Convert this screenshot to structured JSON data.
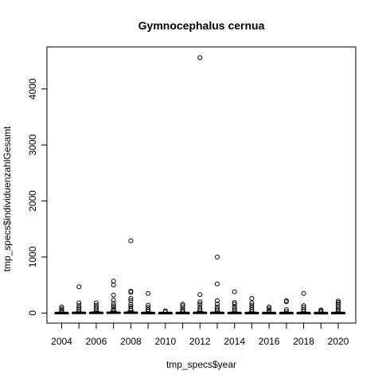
{
  "chart_data": {
    "type": "box",
    "title": "Gymnocephalus cernua",
    "xlabel": "tmp_specs$year",
    "ylabel": "tmp_specs$individuenzahlGesamt",
    "categories": [
      2004,
      2005,
      2006,
      2007,
      2008,
      2009,
      2010,
      2011,
      2012,
      2013,
      2014,
      2015,
      2016,
      2017,
      2018,
      2019,
      2020
    ],
    "x_tick_labels": [
      "2004",
      "2006",
      "2008",
      "2010",
      "2012",
      "2014",
      "2016",
      "2018",
      "2020"
    ],
    "y_ticks": [
      0,
      1000,
      2000,
      3000,
      4000
    ],
    "y_tick_labels": [
      "0",
      "1000",
      "2000",
      "3000",
      "4000"
    ],
    "ylim": [
      -180,
      4750
    ],
    "grid": false,
    "boxes": [
      {
        "category": 2004,
        "q1": 0,
        "median": 2,
        "q3": 6,
        "whisker_low": 0,
        "whisker_high": 14,
        "outliers": [
          25,
          50,
          75,
          110
        ]
      },
      {
        "category": 2005,
        "q1": 0,
        "median": 3,
        "q3": 10,
        "whisker_low": 0,
        "whisker_high": 22,
        "outliers": [
          30,
          60,
          90,
          130,
          180,
          470
        ]
      },
      {
        "category": 2006,
        "q1": 0,
        "median": 3,
        "q3": 11,
        "whisker_low": 0,
        "whisker_high": 26,
        "outliers": [
          40,
          70,
          100,
          140,
          180
        ]
      },
      {
        "category": 2007,
        "q1": 0,
        "median": 4,
        "q3": 14,
        "whisker_low": 0,
        "whisker_high": 33,
        "outliers": [
          45,
          70,
          100,
          130,
          170,
          230,
          320,
          500,
          570
        ]
      },
      {
        "category": 2008,
        "q1": 0,
        "median": 4,
        "q3": 14,
        "whisker_low": 0,
        "whisker_high": 35,
        "outliers": [
          50,
          80,
          120,
          160,
          220,
          260,
          370,
          390,
          1290
        ]
      },
      {
        "category": 2009,
        "q1": 0,
        "median": 2,
        "q3": 8,
        "whisker_low": 0,
        "whisker_high": 18,
        "outliers": [
          30,
          60,
          100,
          140,
          350
        ]
      },
      {
        "category": 2010,
        "q1": 0,
        "median": 1,
        "q3": 4,
        "whisker_low": 0,
        "whisker_high": 9,
        "outliers": [
          20,
          40
        ]
      },
      {
        "category": 2011,
        "q1": 0,
        "median": 2,
        "q3": 8,
        "whisker_low": 0,
        "whisker_high": 18,
        "outliers": [
          30,
          55,
          90,
          130,
          160
        ]
      },
      {
        "category": 2012,
        "q1": 0,
        "median": 3,
        "q3": 11,
        "whisker_low": 0,
        "whisker_high": 25,
        "outliers": [
          40,
          70,
          110,
          160,
          200,
          330,
          4560
        ]
      },
      {
        "category": 2013,
        "q1": 0,
        "median": 3,
        "q3": 10,
        "whisker_low": 0,
        "whisker_high": 22,
        "outliers": [
          40,
          70,
          110,
          160,
          220,
          520,
          1000
        ]
      },
      {
        "category": 2014,
        "q1": 0,
        "median": 2,
        "q3": 9,
        "whisker_low": 0,
        "whisker_high": 20,
        "outliers": [
          35,
          70,
          110,
          160,
          190,
          380
        ]
      },
      {
        "category": 2015,
        "q1": 0,
        "median": 2,
        "q3": 8,
        "whisker_low": 0,
        "whisker_high": 18,
        "outliers": [
          30,
          60,
          100,
          140,
          180,
          260
        ]
      },
      {
        "category": 2016,
        "q1": 0,
        "median": 1,
        "q3": 5,
        "whisker_low": 0,
        "whisker_high": 12,
        "outliers": [
          25,
          50,
          80,
          110
        ]
      },
      {
        "category": 2017,
        "q1": 0,
        "median": 1,
        "q3": 5,
        "whisker_low": 0,
        "whisker_high": 12,
        "outliers": [
          25,
          60,
          200,
          220
        ]
      },
      {
        "category": 2018,
        "q1": 0,
        "median": 2,
        "q3": 7,
        "whisker_low": 0,
        "whisker_high": 16,
        "outliers": [
          30,
          60,
          100,
          130,
          350
        ]
      },
      {
        "category": 2019,
        "q1": 0,
        "median": 1,
        "q3": 3,
        "whisker_low": 0,
        "whisker_high": 7,
        "outliers": [
          20,
          40,
          55
        ]
      },
      {
        "category": 2020,
        "q1": 0,
        "median": 2,
        "q3": 8,
        "whisker_low": 0,
        "whisker_high": 18,
        "outliers": [
          30,
          60,
          90,
          120,
          160,
          190,
          215
        ]
      }
    ]
  }
}
